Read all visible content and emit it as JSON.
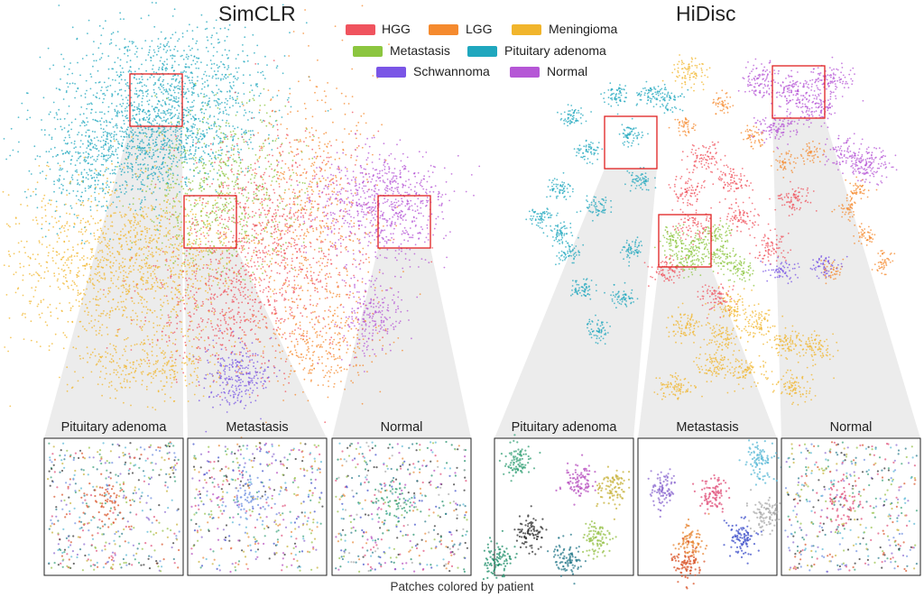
{
  "figure": {
    "caption": "Patches colored by patient",
    "legend": [
      {
        "label": "HGG",
        "color": "#f0535e"
      },
      {
        "label": "LGG",
        "color": "#f58a2e"
      },
      {
        "label": "Meningioma",
        "color": "#f1b52c"
      },
      {
        "label": "Metastasis",
        "color": "#8cc63f"
      },
      {
        "label": "Pituitary adenoma",
        "color": "#1fa7be"
      },
      {
        "label": "Schwannoma",
        "color": "#7a55e6"
      },
      {
        "label": "Normal",
        "color": "#b556d6"
      }
    ],
    "panels": [
      {
        "title": "SimCLR",
        "insets": [
          {
            "title": "Pituitary adenoma"
          },
          {
            "title": "Metastasis"
          },
          {
            "title": "Normal"
          }
        ]
      },
      {
        "title": "HiDisc",
        "insets": [
          {
            "title": "Pituitary adenoma"
          },
          {
            "title": "Metastasis"
          },
          {
            "title": "Normal"
          }
        ]
      }
    ],
    "patient_palette": [
      "#2a7b8c",
      "#d9552b",
      "#6e8fe0",
      "#3aa37a",
      "#8c6ad0",
      "#c7b23a",
      "#e0507a",
      "#2f2f2f",
      "#58b8d6",
      "#97c24a",
      "#3d4fc9",
      "#b74fbf",
      "#e88a3a",
      "#1f8f6a",
      "#a9a9a9"
    ]
  }
}
